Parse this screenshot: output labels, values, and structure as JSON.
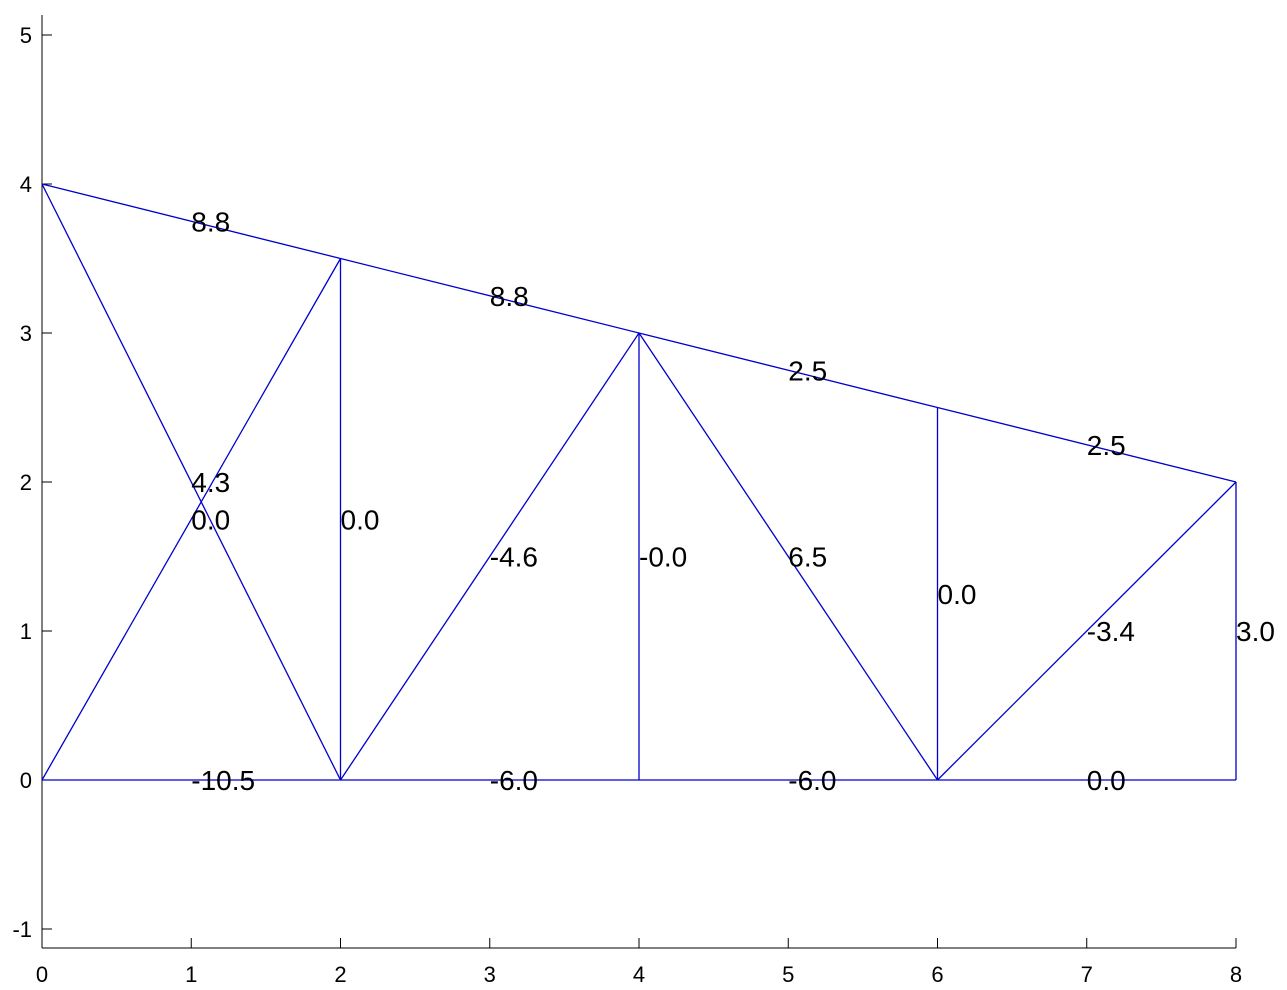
{
  "chart_data": {
    "type": "truss-diagram",
    "xlim": [
      0,
      8
    ],
    "ylim": [
      -1,
      5
    ],
    "x_ticks": [
      "0",
      "1",
      "2",
      "3",
      "4",
      "5",
      "6",
      "7",
      "8"
    ],
    "y_ticks": [
      "-1",
      "0",
      "1",
      "2",
      "3",
      "4",
      "5"
    ],
    "line_color": "#0000cc",
    "grid": false,
    "members": [
      {
        "x1": 0,
        "y1": 4,
        "x2": 2,
        "y2": 3.5,
        "force": "8.8",
        "lx": 1.0,
        "ly": 3.75
      },
      {
        "x1": 2,
        "y1": 3.5,
        "x2": 4,
        "y2": 3,
        "force": "8.8",
        "lx": 3.0,
        "ly": 3.25
      },
      {
        "x1": 4,
        "y1": 3,
        "x2": 6,
        "y2": 2.5,
        "force": "2.5",
        "lx": 5.0,
        "ly": 2.75
      },
      {
        "x1": 6,
        "y1": 2.5,
        "x2": 8,
        "y2": 2,
        "force": "2.5",
        "lx": 7.0,
        "ly": 2.25
      },
      {
        "x1": 0,
        "y1": 4,
        "x2": 2,
        "y2": 0,
        "force": "4.3",
        "lx": 1.0,
        "ly": 2.0
      },
      {
        "x1": 0,
        "y1": 0,
        "x2": 2,
        "y2": 3.5,
        "force": "0.0",
        "lx": 1.0,
        "ly": 1.75
      },
      {
        "x1": 2,
        "y1": 0,
        "x2": 2,
        "y2": 3.5,
        "force": "0.0",
        "lx": 2.0,
        "ly": 1.75
      },
      {
        "x1": 2,
        "y1": 0,
        "x2": 4,
        "y2": 3,
        "force": "-4.6",
        "lx": 3.0,
        "ly": 1.5
      },
      {
        "x1": 4,
        "y1": 0,
        "x2": 4,
        "y2": 3,
        "force": "-0.0",
        "lx": 4.0,
        "ly": 1.5
      },
      {
        "x1": 4,
        "y1": 3,
        "x2": 6,
        "y2": 0,
        "force": "6.5",
        "lx": 5.0,
        "ly": 1.5
      },
      {
        "x1": 6,
        "y1": 0,
        "x2": 6,
        "y2": 2.5,
        "force": "0.0",
        "lx": 6.0,
        "ly": 1.25
      },
      {
        "x1": 6,
        "y1": 0,
        "x2": 8,
        "y2": 2,
        "force": "-3.4",
        "lx": 7.0,
        "ly": 1.0
      },
      {
        "x1": 8,
        "y1": 0,
        "x2": 8,
        "y2": 2,
        "force": "3.0",
        "lx": 8.0,
        "ly": 1.0
      },
      {
        "x1": 0,
        "y1": 0,
        "x2": 2,
        "y2": 0,
        "force": "-10.5",
        "lx": 1.0,
        "ly": 0.0
      },
      {
        "x1": 2,
        "y1": 0,
        "x2": 4,
        "y2": 0,
        "force": "-6.0",
        "lx": 3.0,
        "ly": 0.0
      },
      {
        "x1": 4,
        "y1": 0,
        "x2": 6,
        "y2": 0,
        "force": "-6.0",
        "lx": 5.0,
        "ly": 0.0
      },
      {
        "x1": 6,
        "y1": 0,
        "x2": 8,
        "y2": 0,
        "force": "0.0",
        "lx": 7.0,
        "ly": 0.0
      }
    ]
  }
}
